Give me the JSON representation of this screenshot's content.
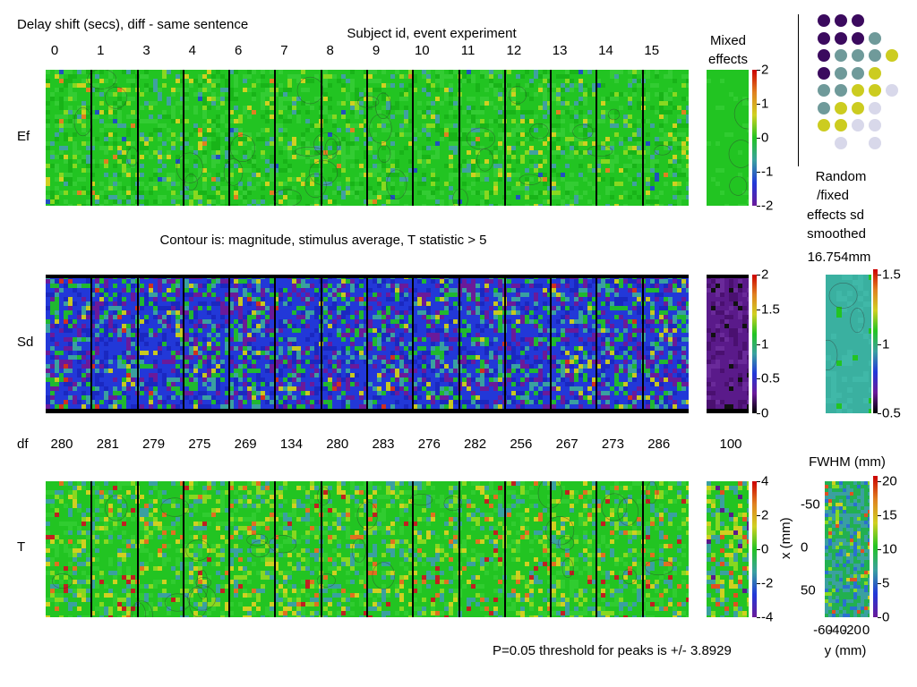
{
  "figure": {
    "title": "Delay shift (secs), diff - same sentence",
    "subject_axis_title": "Subject id, event experiment",
    "subject_ids": [
      "0",
      "1",
      "3",
      "4",
      "6",
      "7",
      "8",
      "9",
      "10",
      "11",
      "12",
      "13",
      "14",
      "15"
    ],
    "mixed_effects_label_1": "Mixed",
    "mixed_effects_label_2": "effects",
    "row_labels": {
      "ef": "Ef",
      "sd": "Sd",
      "df": "df",
      "t": "T"
    },
    "contour_note": "Contour is: magnitude, stimulus average, T statistic > 5",
    "df_values": [
      "280",
      "281",
      "279",
      "275",
      "269",
      "134",
      "280",
      "283",
      "276",
      "282",
      "256",
      "267",
      "273",
      "286"
    ],
    "df_mixed": "100",
    "random_fixed": {
      "line1": "Random",
      "line2": "/fixed",
      "line3": "effects sd",
      "line4": "smoothed",
      "value": "16.754mm"
    },
    "fwhm_title": "FWHM (mm)",
    "x_axis_label": "x (mm)",
    "y_axis_label": "y (mm)",
    "x_ticks": [
      "-50",
      "0",
      "50"
    ],
    "y_ticks": [
      "-60",
      "-40",
      "-20",
      "0"
    ],
    "threshold_note": "P=0.05 threshold for peaks is +/- 3.8929",
    "colors": {
      "green": "#1fc41f",
      "blue": "#1f3fd8",
      "purple": "#6a1a9a",
      "teal": "#3aa0a0",
      "dark_purple": "#3b0a5e",
      "grey_teal": "#6f9a9a",
      "yellow_green": "#cccc20",
      "lavender": "#d8d8ea"
    }
  },
  "chart_data": [
    {
      "type": "heatmap",
      "title": "Ef",
      "subjects": [
        "0",
        "1",
        "3",
        "4",
        "6",
        "7",
        "8",
        "9",
        "10",
        "11",
        "12",
        "13",
        "14",
        "15"
      ],
      "colorbar_ticks": [
        "2",
        "1",
        "0",
        "-1",
        "-2"
      ],
      "colorbar_range": [
        -2,
        2
      ],
      "mixed_effects": true
    },
    {
      "type": "heatmap",
      "title": "Sd",
      "subjects": [
        "0",
        "1",
        "3",
        "4",
        "6",
        "7",
        "8",
        "9",
        "10",
        "11",
        "12",
        "13",
        "14",
        "15"
      ],
      "colorbar_ticks": [
        "2",
        "1.5",
        "1",
        "0.5",
        "0"
      ],
      "colorbar_range": [
        0,
        2
      ],
      "mixed_effects": true
    },
    {
      "type": "heatmap",
      "title": "T",
      "subjects": [
        "0",
        "1",
        "3",
        "4",
        "6",
        "7",
        "8",
        "9",
        "10",
        "11",
        "12",
        "13",
        "14",
        "15"
      ],
      "df": [
        280,
        281,
        279,
        275,
        269,
        134,
        280,
        283,
        276,
        282,
        256,
        267,
        273,
        286
      ],
      "df_mixed": 100,
      "colorbar_ticks": [
        "4",
        "2",
        "0",
        "-2",
        "-4"
      ],
      "colorbar_range": [
        -4,
        4
      ],
      "mixed_effects": true
    },
    {
      "type": "heatmap",
      "title": "Random/fixed effects sd smoothed",
      "colorbar_ticks": [
        "1.5",
        "1",
        "0.5"
      ],
      "colorbar_range": [
        0.5,
        1.5
      ]
    },
    {
      "type": "heatmap",
      "title": "FWHM (mm)",
      "xlabel": "y (mm)",
      "ylabel": "x (mm)",
      "x_ticks": [
        -60,
        -40,
        -20,
        0
      ],
      "y_ticks": [
        -50,
        0,
        50
      ],
      "colorbar_ticks": [
        "20",
        "15",
        "10",
        "5",
        "0"
      ],
      "colorbar_range": [
        0,
        20
      ]
    }
  ]
}
